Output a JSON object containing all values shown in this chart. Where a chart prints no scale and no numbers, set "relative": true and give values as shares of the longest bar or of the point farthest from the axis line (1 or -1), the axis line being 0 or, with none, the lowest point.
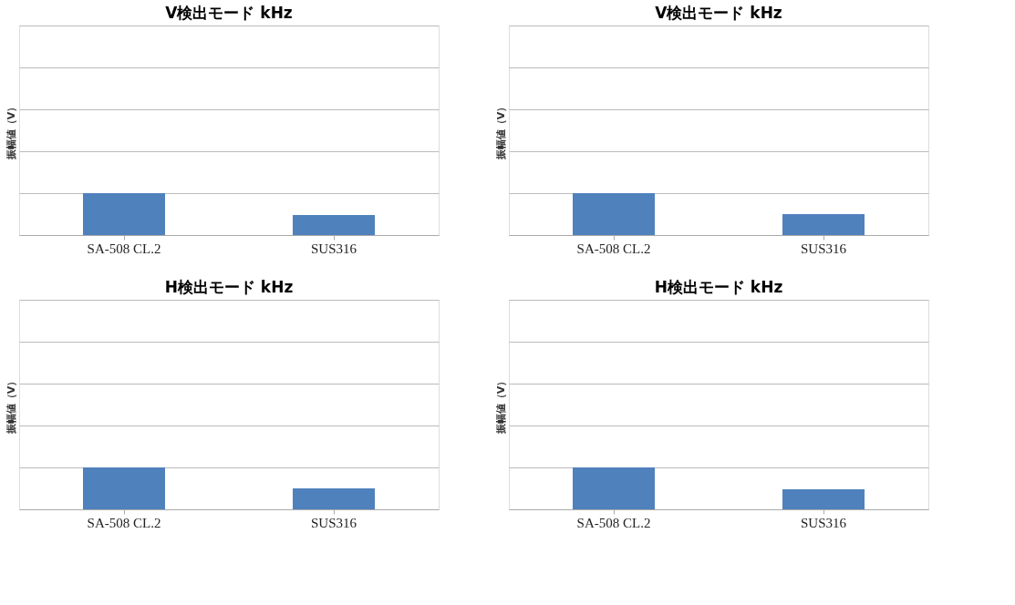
{
  "chart_data": [
    {
      "type": "bar",
      "title": "V検出モード kHz",
      "ylabel": "振幅値（V）",
      "categories": [
        "SA-508 CL.2",
        "SUS316"
      ],
      "values": [
        1,
        0.48
      ],
      "color": "#4f81bd",
      "relative": true,
      "grid": "y",
      "tick_labels": "x"
    },
    {
      "type": "bar",
      "title": "V検出モード kHz",
      "ylabel": "振幅値（V）",
      "categories": [
        "SA-508 CL.2",
        "SUS316"
      ],
      "values": [
        1,
        0.5
      ],
      "color": "#4f81bd",
      "relative": true,
      "grid": "y",
      "tick_labels": "x"
    },
    {
      "type": "bar",
      "title": "H検出モード kHz",
      "ylabel": "振幅値（V）",
      "categories": [
        "SA-508 CL.2",
        "SUS316"
      ],
      "values": [
        1,
        0.5
      ],
      "color": "#4f81bd",
      "relative": true,
      "grid": "y",
      "tick_labels": "x"
    },
    {
      "type": "bar",
      "title": "H検出モード kHz",
      "ylabel": "振幅値（V）",
      "categories": [
        "SA-508 CL.2",
        "SUS316"
      ],
      "values": [
        1,
        0.48
      ],
      "color": "#4f81bd",
      "relative": true,
      "grid": "y",
      "tick_labels": "x"
    }
  ]
}
